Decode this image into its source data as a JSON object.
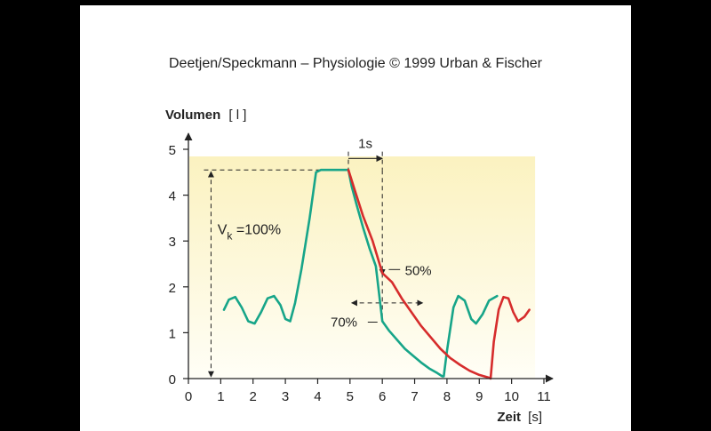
{
  "colors": {
    "fev": "#17a589",
    "slow": "#d62c2c",
    "axis": "#222222",
    "bg_top": "#fbf2c0",
    "bg_bottom": "#fffef6"
  },
  "chart_data": {
    "type": "line",
    "title": "Deetjen/Speckmann – Physiologie © 1999 Urban & Fischer",
    "ylabel": "Volumen",
    "ylabel_unit": "[ l ]",
    "xlabel": "Zeit",
    "xlabel_unit": "[s]",
    "xlim": [
      0,
      11
    ],
    "ylim": [
      0,
      5
    ],
    "x_ticks": [
      0,
      1,
      2,
      3,
      4,
      5,
      6,
      7,
      8,
      9,
      10,
      11
    ],
    "y_ticks": [
      0,
      1,
      2,
      3,
      4,
      5
    ],
    "grid": false,
    "series": [
      {
        "name": "",
        "color_key": "fev",
        "points": [
          [
            1.1,
            1.5
          ],
          [
            1.25,
            1.72
          ],
          [
            1.45,
            1.78
          ],
          [
            1.65,
            1.55
          ],
          [
            1.85,
            1.25
          ],
          [
            2.05,
            1.2
          ],
          [
            2.25,
            1.45
          ],
          [
            2.45,
            1.75
          ],
          [
            2.65,
            1.8
          ],
          [
            2.85,
            1.6
          ],
          [
            3.0,
            1.3
          ],
          [
            3.15,
            1.25
          ],
          [
            3.3,
            1.65
          ],
          [
            3.5,
            2.4
          ],
          [
            3.75,
            3.5
          ],
          [
            3.95,
            4.5
          ],
          [
            4.1,
            4.55
          ],
          [
            4.95,
            4.55
          ],
          [
            5.05,
            4.2
          ],
          [
            5.2,
            3.8
          ],
          [
            5.4,
            3.3
          ],
          [
            5.6,
            2.85
          ],
          [
            5.8,
            2.45
          ],
          [
            6.0,
            1.25
          ],
          [
            6.2,
            1.05
          ],
          [
            6.45,
            0.85
          ],
          [
            6.7,
            0.65
          ],
          [
            6.95,
            0.5
          ],
          [
            7.2,
            0.35
          ],
          [
            7.45,
            0.22
          ],
          [
            7.7,
            0.12
          ],
          [
            7.85,
            0.05
          ],
          [
            7.9,
            0.05
          ],
          [
            8.0,
            0.6
          ],
          [
            8.2,
            1.55
          ],
          [
            8.35,
            1.8
          ],
          [
            8.55,
            1.7
          ],
          [
            8.75,
            1.3
          ],
          [
            8.9,
            1.2
          ],
          [
            9.1,
            1.4
          ],
          [
            9.3,
            1.7
          ],
          [
            9.55,
            1.8
          ]
        ]
      },
      {
        "name": "",
        "color_key": "slow",
        "points": [
          [
            4.95,
            4.55
          ],
          [
            5.15,
            4.1
          ],
          [
            5.4,
            3.55
          ],
          [
            5.7,
            3.0
          ],
          [
            6.0,
            2.3
          ],
          [
            6.3,
            2.1
          ],
          [
            6.6,
            1.75
          ],
          [
            6.9,
            1.45
          ],
          [
            7.2,
            1.15
          ],
          [
            7.5,
            0.9
          ],
          [
            7.8,
            0.65
          ],
          [
            8.1,
            0.45
          ],
          [
            8.4,
            0.3
          ],
          [
            8.7,
            0.17
          ],
          [
            9.0,
            0.08
          ],
          [
            9.3,
            0.02
          ],
          [
            9.35,
            0.0
          ],
          [
            9.45,
            0.8
          ],
          [
            9.6,
            1.5
          ],
          [
            9.75,
            1.78
          ],
          [
            9.9,
            1.75
          ],
          [
            10.05,
            1.45
          ],
          [
            10.2,
            1.25
          ],
          [
            10.4,
            1.35
          ],
          [
            10.55,
            1.5
          ]
        ]
      }
    ],
    "annotations": [
      {
        "text": "1s",
        "kind": "interval",
        "x_from": 4.95,
        "x_to": 6.0,
        "y": 4.8
      },
      {
        "text": "V",
        "sub": "k",
        "suffix": "=100%",
        "kind": "vertical-span",
        "x": 0.7,
        "y_from": 0.0,
        "y_to": 4.55,
        "label_x": 0.9,
        "label_y": 3.15
      },
      {
        "text": "50%",
        "kind": "point-label",
        "x": 6.0,
        "y": 2.3,
        "label_x": 6.85,
        "label_y": 2.25
      },
      {
        "text": "70%",
        "kind": "point-label",
        "x": 6.0,
        "y": 1.25,
        "label_x": 4.4,
        "label_y": 1.25
      }
    ]
  }
}
